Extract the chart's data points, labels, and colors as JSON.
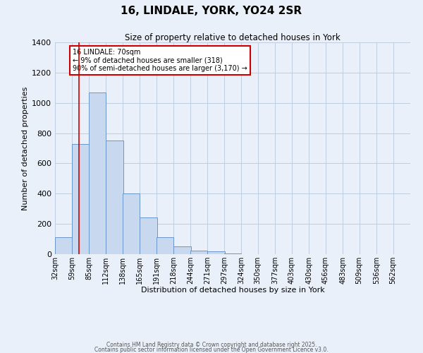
{
  "title": "16, LINDALE, YORK, YO24 2SR",
  "subtitle": "Size of property relative to detached houses in York",
  "xlabel": "Distribution of detached houses by size in York",
  "ylabel": "Number of detached properties",
  "bar_color": "#c8d8ee",
  "bar_edge_color": "#6a96cc",
  "background_color": "#eaf0fa",
  "grid_color": "#c0cce0",
  "bin_labels": [
    "32sqm",
    "59sqm",
    "85sqm",
    "112sqm",
    "138sqm",
    "165sqm",
    "191sqm",
    "218sqm",
    "244sqm",
    "271sqm",
    "297sqm",
    "324sqm",
    "350sqm",
    "377sqm",
    "403sqm",
    "430sqm",
    "456sqm",
    "483sqm",
    "509sqm",
    "536sqm",
    "562sqm"
  ],
  "bar_heights": [
    110,
    730,
    1070,
    750,
    400,
    245,
    110,
    50,
    25,
    20,
    5,
    0,
    0,
    0,
    0,
    0,
    0,
    0,
    0,
    0,
    0
  ],
  "bin_edges": [
    32,
    59,
    85,
    112,
    138,
    165,
    191,
    218,
    244,
    271,
    297,
    324,
    350,
    377,
    403,
    430,
    456,
    483,
    509,
    536,
    562
  ],
  "bin_width": 27,
  "ylim": [
    0,
    1400
  ],
  "yticks": [
    0,
    200,
    400,
    600,
    800,
    1000,
    1200,
    1400
  ],
  "red_line_x": 70,
  "annotation_text": "16 LINDALE: 70sqm\n← 9% of detached houses are smaller (318)\n90% of semi-detached houses are larger (3,170) →",
  "annotation_box_color": "#ffffff",
  "annotation_border_color": "#cc0000",
  "footnote1": "Contains HM Land Registry data © Crown copyright and database right 2025.",
  "footnote2": "Contains public sector information licensed under the Open Government Licence v3.0."
}
